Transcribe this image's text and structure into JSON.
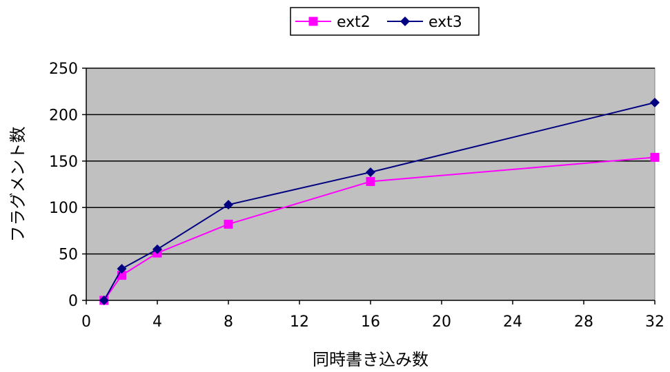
{
  "chart_data": {
    "type": "line",
    "xlabel": "同時書き込み数",
    "ylabel": "フラグメント数",
    "xlim": [
      0,
      32
    ],
    "ylim": [
      0,
      250
    ],
    "xticks": [
      0,
      4,
      8,
      12,
      16,
      20,
      24,
      28,
      32
    ],
    "yticks": [
      0,
      50,
      100,
      150,
      200,
      250
    ],
    "grid": "horizontal",
    "plot_background": "#c0c0c0",
    "legend_position": "top-center",
    "series": [
      {
        "name": "ext2",
        "color": "#ff00ff",
        "marker": "square",
        "x": [
          1,
          2,
          4,
          8,
          16,
          32
        ],
        "y": [
          0,
          27,
          51,
          82,
          128,
          154
        ]
      },
      {
        "name": "ext3",
        "color": "#000080",
        "marker": "diamond",
        "x": [
          1,
          2,
          4,
          8,
          16,
          32
        ],
        "y": [
          0,
          34,
          55,
          103,
          138,
          213
        ]
      }
    ]
  }
}
